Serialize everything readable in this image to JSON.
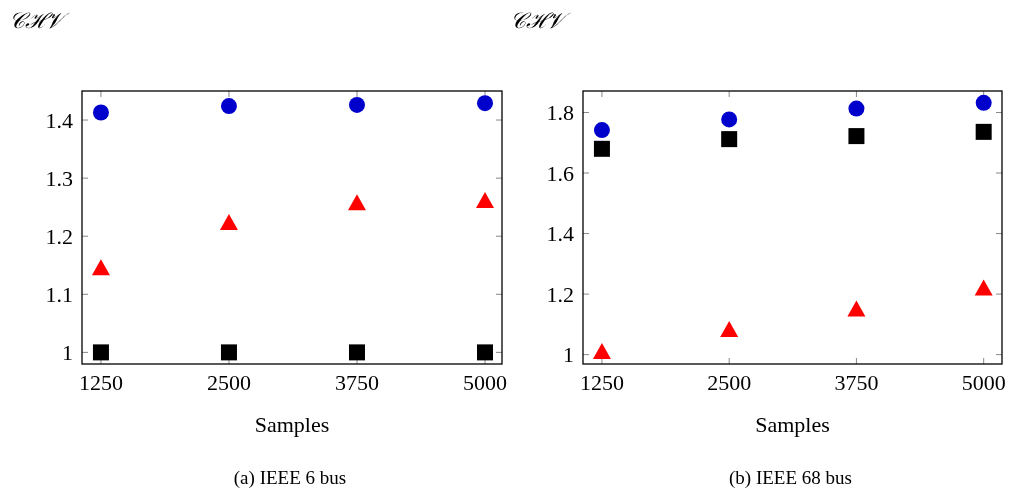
{
  "chart_data": [
    {
      "type": "scatter",
      "ylabel": "𝒞ℋ𝒱",
      "xlabel": "Samples",
      "annotations": [
        "(a) IEEE 6 bus"
      ],
      "x": [
        1250,
        2500,
        3750,
        5000
      ],
      "xlim": [
        1065,
        5166
      ],
      "xticks": [
        1250,
        2500,
        3750,
        5000
      ],
      "ylim": [
        0.98,
        1.45
      ],
      "yticks": [
        1,
        1.1,
        1.2,
        1.3,
        1.4
      ],
      "series": [
        {
          "color": "#0000cc",
          "marker": "circle",
          "values": [
            1.413,
            1.424,
            1.426,
            1.429
          ]
        },
        {
          "color": "#ff0000",
          "marker": "triangle",
          "values": [
            1.143,
            1.221,
            1.255,
            1.259
          ]
        },
        {
          "color": "#000000",
          "marker": "square",
          "values": [
            1,
            1,
            1,
            1
          ]
        }
      ]
    },
    {
      "type": "scatter",
      "ylabel": "𝒞ℋ𝒱",
      "xlabel": "Samples",
      "annotations": [
        "(b) IEEE 68 bus"
      ],
      "x": [
        1250,
        2500,
        3750,
        5000
      ],
      "xlim": [
        1064,
        5180
      ],
      "xticks": [
        1250,
        2500,
        3750,
        5000
      ],
      "ylim": [
        0.969,
        1.871
      ],
      "yticks": [
        1,
        1.2,
        1.4,
        1.6,
        1.8
      ],
      "series": [
        {
          "color": "#0000cc",
          "marker": "circle",
          "values": [
            1.742,
            1.777,
            1.813,
            1.832
          ]
        },
        {
          "color": "#ff0000",
          "marker": "triangle",
          "values": [
            1.005,
            1.078,
            1.146,
            1.215
          ]
        },
        {
          "color": "#000000",
          "marker": "square",
          "values": [
            1.68,
            1.712,
            1.722,
            1.736
          ]
        }
      ]
    }
  ]
}
